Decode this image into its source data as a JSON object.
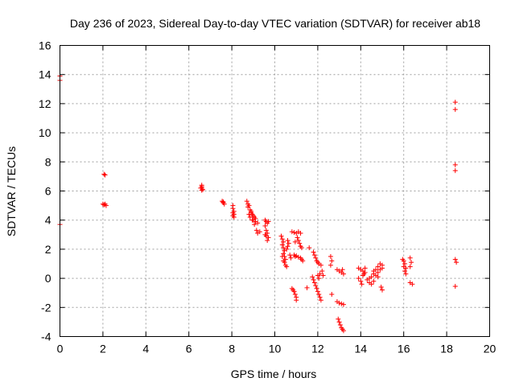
{
  "chart_data": {
    "type": "scatter",
    "title": "Day 236 of 2023, Sidereal Day-to-day VTEC variation (SDTVAR) for receiver ab18",
    "xlabel": "GPS time / hours",
    "ylabel": "SDTVAR / TECUs",
    "xlim": [
      0,
      20
    ],
    "ylim": [
      -4,
      16
    ],
    "xticks": [
      "0",
      "2",
      "4",
      "6",
      "8",
      "10",
      "12",
      "14",
      "16",
      "18",
      "20"
    ],
    "yticks": [
      "-4",
      "-2",
      "0",
      "2",
      "4",
      "6",
      "8",
      "10",
      "12",
      "14",
      "16"
    ],
    "grid": true,
    "marker": "+",
    "color": "#ff0000",
    "series": [
      {
        "name": "ab18",
        "points": [
          [
            0.0,
            13.9
          ],
          [
            0.0,
            13.6
          ],
          [
            0.0,
            3.7
          ],
          [
            2.05,
            7.15
          ],
          [
            2.1,
            7.1
          ],
          [
            2.0,
            5.1
          ],
          [
            2.05,
            5.05
          ],
          [
            2.1,
            5.1
          ],
          [
            2.15,
            5.0
          ],
          [
            6.6,
            6.4
          ],
          [
            6.6,
            6.3
          ],
          [
            6.6,
            6.2
          ],
          [
            6.65,
            6.1
          ],
          [
            6.6,
            6.05
          ],
          [
            6.55,
            6.2
          ],
          [
            7.55,
            5.3
          ],
          [
            7.6,
            5.2
          ],
          [
            7.65,
            5.1
          ],
          [
            7.6,
            5.25
          ],
          [
            8.05,
            5.0
          ],
          [
            8.05,
            4.8
          ],
          [
            8.1,
            4.6
          ],
          [
            8.05,
            4.5
          ],
          [
            8.1,
            4.4
          ],
          [
            8.1,
            4.2
          ],
          [
            8.05,
            4.3
          ],
          [
            8.7,
            5.3
          ],
          [
            8.75,
            5.1
          ],
          [
            8.8,
            5.0
          ],
          [
            8.75,
            4.9
          ],
          [
            8.85,
            4.7
          ],
          [
            8.9,
            4.6
          ],
          [
            8.9,
            4.5
          ],
          [
            8.95,
            4.4
          ],
          [
            9.0,
            4.3
          ],
          [
            9.05,
            4.2
          ],
          [
            9.1,
            4.1
          ],
          [
            9.0,
            4.0
          ],
          [
            9.1,
            3.9
          ],
          [
            9.2,
            3.8
          ],
          [
            8.8,
            4.4
          ],
          [
            8.85,
            4.2
          ],
          [
            8.95,
            4.0
          ],
          [
            9.05,
            3.7
          ],
          [
            9.15,
            3.3
          ],
          [
            9.2,
            3.1
          ],
          [
            9.3,
            3.2
          ],
          [
            9.55,
            4.0
          ],
          [
            9.6,
            3.9
          ],
          [
            9.65,
            3.8
          ],
          [
            9.7,
            3.9
          ],
          [
            9.55,
            3.6
          ],
          [
            9.6,
            3.3
          ],
          [
            9.65,
            3.1
          ],
          [
            9.6,
            2.9
          ],
          [
            9.7,
            2.8
          ],
          [
            9.65,
            2.6
          ],
          [
            9.55,
            3.0
          ],
          [
            10.3,
            2.9
          ],
          [
            10.35,
            2.7
          ],
          [
            10.4,
            2.5
          ],
          [
            10.35,
            2.3
          ],
          [
            10.4,
            2.1
          ],
          [
            10.45,
            1.9
          ],
          [
            10.4,
            1.7
          ],
          [
            10.45,
            1.5
          ],
          [
            10.5,
            1.3
          ],
          [
            10.45,
            1.1
          ],
          [
            10.5,
            0.9
          ],
          [
            10.55,
            0.8
          ],
          [
            10.4,
            1.2
          ],
          [
            10.35,
            1.5
          ],
          [
            10.6,
            2.6
          ],
          [
            10.65,
            2.4
          ],
          [
            10.6,
            2.2
          ],
          [
            10.55,
            2.0
          ],
          [
            10.7,
            1.6
          ],
          [
            10.75,
            1.4
          ],
          [
            10.8,
            3.2
          ],
          [
            10.9,
            3.15
          ],
          [
            11.0,
            3.1
          ],
          [
            11.1,
            3.2
          ],
          [
            11.2,
            3.1
          ],
          [
            11.05,
            2.8
          ],
          [
            11.1,
            2.6
          ],
          [
            11.15,
            2.4
          ],
          [
            11.2,
            2.2
          ],
          [
            11.25,
            2.1
          ],
          [
            10.95,
            2.5
          ],
          [
            10.9,
            1.6
          ],
          [
            10.95,
            1.5
          ],
          [
            11.0,
            1.55
          ],
          [
            11.1,
            1.45
          ],
          [
            11.2,
            1.4
          ],
          [
            11.25,
            1.3
          ],
          [
            11.3,
            1.2
          ],
          [
            10.8,
            -0.7
          ],
          [
            10.85,
            -0.8
          ],
          [
            10.9,
            -0.9
          ],
          [
            10.95,
            -1.1
          ],
          [
            11.0,
            -1.3
          ],
          [
            11.0,
            -1.5
          ],
          [
            11.6,
            2.1
          ],
          [
            11.5,
            -0.65
          ],
          [
            11.8,
            1.8
          ],
          [
            11.85,
            1.6
          ],
          [
            11.9,
            1.4
          ],
          [
            11.95,
            1.2
          ],
          [
            12.0,
            1.1
          ],
          [
            12.05,
            1.0
          ],
          [
            12.15,
            0.9
          ],
          [
            11.75,
            0.1
          ],
          [
            11.8,
            -0.1
          ],
          [
            11.85,
            -0.3
          ],
          [
            11.9,
            -0.5
          ],
          [
            11.95,
            -0.7
          ],
          [
            12.0,
            -0.9
          ],
          [
            12.05,
            -1.1
          ],
          [
            12.1,
            -1.3
          ],
          [
            12.15,
            -1.5
          ],
          [
            12.0,
            0.2
          ],
          [
            12.05,
            0.0
          ],
          [
            12.1,
            0.3
          ],
          [
            12.2,
            0.5
          ],
          [
            12.25,
            0.2
          ],
          [
            12.6,
            1.5
          ],
          [
            12.65,
            1.2
          ],
          [
            12.6,
            0.9
          ],
          [
            12.65,
            -1.1
          ],
          [
            12.9,
            0.6
          ],
          [
            13.0,
            0.5
          ],
          [
            13.1,
            0.4
          ],
          [
            13.2,
            0.3
          ],
          [
            13.15,
            0.6
          ],
          [
            12.9,
            -1.6
          ],
          [
            13.0,
            -1.7
          ],
          [
            13.1,
            -1.75
          ],
          [
            13.2,
            -1.8
          ],
          [
            12.95,
            -2.8
          ],
          [
            13.0,
            -3.0
          ],
          [
            13.05,
            -3.2
          ],
          [
            13.1,
            -3.4
          ],
          [
            13.15,
            -3.5
          ],
          [
            13.2,
            -3.6
          ],
          [
            13.9,
            0.7
          ],
          [
            14.0,
            0.6
          ],
          [
            14.1,
            0.5
          ],
          [
            14.15,
            0.3
          ],
          [
            13.9,
            0.0
          ],
          [
            14.0,
            -0.2
          ],
          [
            14.05,
            -0.4
          ],
          [
            14.1,
            0.2
          ],
          [
            14.2,
            0.4
          ],
          [
            14.2,
            0.7
          ],
          [
            14.3,
            -0.1
          ],
          [
            14.4,
            -0.3
          ],
          [
            14.5,
            -0.4
          ],
          [
            14.5,
            0.1
          ],
          [
            14.6,
            0.3
          ],
          [
            14.6,
            0.5
          ],
          [
            14.7,
            0.2
          ],
          [
            14.7,
            0.6
          ],
          [
            14.8,
            0.4
          ],
          [
            14.8,
            0.8
          ],
          [
            14.9,
            0.6
          ],
          [
            14.9,
            1.0
          ],
          [
            15.0,
            0.9
          ],
          [
            15.0,
            0.7
          ],
          [
            14.6,
            -0.2
          ],
          [
            14.4,
            0.0
          ],
          [
            14.8,
            0.1
          ],
          [
            14.95,
            -0.6
          ],
          [
            15.0,
            -0.8
          ],
          [
            15.95,
            1.3
          ],
          [
            16.0,
            1.2
          ],
          [
            16.05,
            1.0
          ],
          [
            16.0,
            0.8
          ],
          [
            16.05,
            0.5
          ],
          [
            16.1,
            0.3
          ],
          [
            16.1,
            0.7
          ],
          [
            16.3,
            1.4
          ],
          [
            16.35,
            1.1
          ],
          [
            16.3,
            0.8
          ],
          [
            16.3,
            -0.3
          ],
          [
            16.4,
            -0.4
          ],
          [
            18.4,
            12.1
          ],
          [
            18.4,
            11.6
          ],
          [
            18.4,
            7.8
          ],
          [
            18.4,
            7.4
          ],
          [
            18.4,
            1.3
          ],
          [
            18.45,
            1.1
          ],
          [
            18.4,
            -0.55
          ]
        ]
      }
    ]
  }
}
